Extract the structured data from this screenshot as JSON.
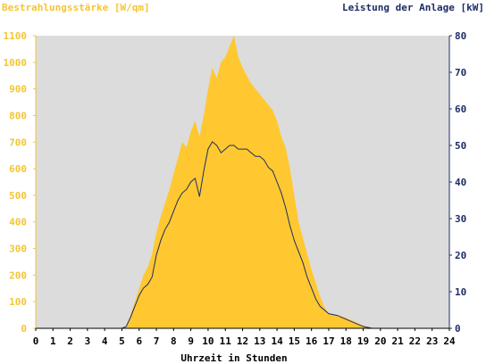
{
  "chart_data": {
    "type": "area",
    "left_axis_title": "Bestrahlungsstärke [W/qm]",
    "right_axis_title": "Leistung der Anlage [kW]",
    "xlabel": "Uhrzeit in Stunden",
    "x_ticks": [
      "0",
      "1",
      "2",
      "3",
      "4",
      "5",
      "6",
      "7",
      "8",
      "9",
      "10",
      "11",
      "12",
      "13",
      "14",
      "15",
      "16",
      "17",
      "18",
      "19",
      "20",
      "21",
      "22",
      "23",
      "24"
    ],
    "xlim": [
      0,
      24
    ],
    "ylim_left": [
      0,
      1100
    ],
    "ylim_right": [
      0,
      80
    ],
    "left_ticks": [
      "0",
      "100",
      "200",
      "300",
      "400",
      "500",
      "600",
      "700",
      "800",
      "900",
      "1000",
      "1100"
    ],
    "right_ticks": [
      "0",
      "10",
      "20",
      "30",
      "40",
      "50",
      "60",
      "70",
      "80"
    ],
    "grid": false,
    "colors": {
      "plot_background": "#dcdcdc",
      "irradiance_fill": "#ffc830",
      "power_line": "#1c2d66",
      "left_axis": "#f5c530",
      "right_axis": "#1c2d66"
    },
    "series": [
      {
        "axis": "left",
        "style": "area",
        "points": [
          [
            0,
            0
          ],
          [
            5.0,
            0
          ],
          [
            5.25,
            10
          ],
          [
            5.5,
            50
          ],
          [
            5.75,
            100
          ],
          [
            6.0,
            150
          ],
          [
            6.25,
            200
          ],
          [
            6.5,
            230
          ],
          [
            6.75,
            280
          ],
          [
            7.0,
            360
          ],
          [
            7.25,
            420
          ],
          [
            7.5,
            470
          ],
          [
            7.75,
            520
          ],
          [
            8.0,
            580
          ],
          [
            8.25,
            640
          ],
          [
            8.5,
            700
          ],
          [
            8.75,
            680
          ],
          [
            9.0,
            740
          ],
          [
            9.25,
            780
          ],
          [
            9.5,
            720
          ],
          [
            9.75,
            800
          ],
          [
            10.0,
            900
          ],
          [
            10.25,
            980
          ],
          [
            10.5,
            940
          ],
          [
            10.75,
            1000
          ],
          [
            11.0,
            1020
          ],
          [
            11.25,
            1060
          ],
          [
            11.5,
            1100
          ],
          [
            11.75,
            1020
          ],
          [
            12.0,
            980
          ],
          [
            12.25,
            950
          ],
          [
            12.5,
            920
          ],
          [
            12.75,
            900
          ],
          [
            13.0,
            880
          ],
          [
            13.25,
            860
          ],
          [
            13.5,
            840
          ],
          [
            13.75,
            820
          ],
          [
            14.0,
            780
          ],
          [
            14.25,
            720
          ],
          [
            14.5,
            680
          ],
          [
            14.75,
            600
          ],
          [
            15.0,
            500
          ],
          [
            15.25,
            400
          ],
          [
            15.5,
            340
          ],
          [
            15.75,
            280
          ],
          [
            16.0,
            220
          ],
          [
            16.25,
            170
          ],
          [
            16.5,
            120
          ],
          [
            16.75,
            80
          ],
          [
            17.0,
            55
          ],
          [
            17.5,
            50
          ],
          [
            18.0,
            40
          ],
          [
            18.5,
            25
          ],
          [
            19.0,
            10
          ],
          [
            19.5,
            2
          ],
          [
            20.0,
            0
          ],
          [
            24,
            0
          ]
        ]
      },
      {
        "axis": "right",
        "style": "line",
        "points": [
          [
            0,
            0
          ],
          [
            5.0,
            0
          ],
          [
            5.25,
            0.5
          ],
          [
            5.5,
            3
          ],
          [
            5.75,
            6
          ],
          [
            6.0,
            9
          ],
          [
            6.25,
            11
          ],
          [
            6.5,
            12
          ],
          [
            6.75,
            14
          ],
          [
            7.0,
            20
          ],
          [
            7.25,
            24
          ],
          [
            7.5,
            27
          ],
          [
            7.75,
            29
          ],
          [
            8.0,
            32
          ],
          [
            8.25,
            35
          ],
          [
            8.5,
            37
          ],
          [
            8.75,
            38
          ],
          [
            9.0,
            40
          ],
          [
            9.25,
            41
          ],
          [
            9.5,
            36
          ],
          [
            9.75,
            43
          ],
          [
            10.0,
            49
          ],
          [
            10.25,
            51
          ],
          [
            10.5,
            50
          ],
          [
            10.75,
            48
          ],
          [
            11.0,
            49
          ],
          [
            11.25,
            50
          ],
          [
            11.5,
            50
          ],
          [
            11.75,
            49
          ],
          [
            12.0,
            49
          ],
          [
            12.25,
            49
          ],
          [
            12.5,
            48
          ],
          [
            12.75,
            47
          ],
          [
            13.0,
            47
          ],
          [
            13.25,
            46
          ],
          [
            13.5,
            44
          ],
          [
            13.75,
            43
          ],
          [
            14.0,
            40
          ],
          [
            14.25,
            37
          ],
          [
            14.5,
            33
          ],
          [
            14.75,
            28
          ],
          [
            15.0,
            24
          ],
          [
            15.25,
            21
          ],
          [
            15.5,
            18
          ],
          [
            15.75,
            14
          ],
          [
            16.0,
            11
          ],
          [
            16.25,
            8
          ],
          [
            16.5,
            6
          ],
          [
            16.75,
            5
          ],
          [
            17.0,
            4
          ],
          [
            17.5,
            3.5
          ],
          [
            18.0,
            2.5
          ],
          [
            18.5,
            1.5
          ],
          [
            19.0,
            0.5
          ],
          [
            19.5,
            0
          ],
          [
            24,
            0
          ]
        ]
      }
    ]
  }
}
